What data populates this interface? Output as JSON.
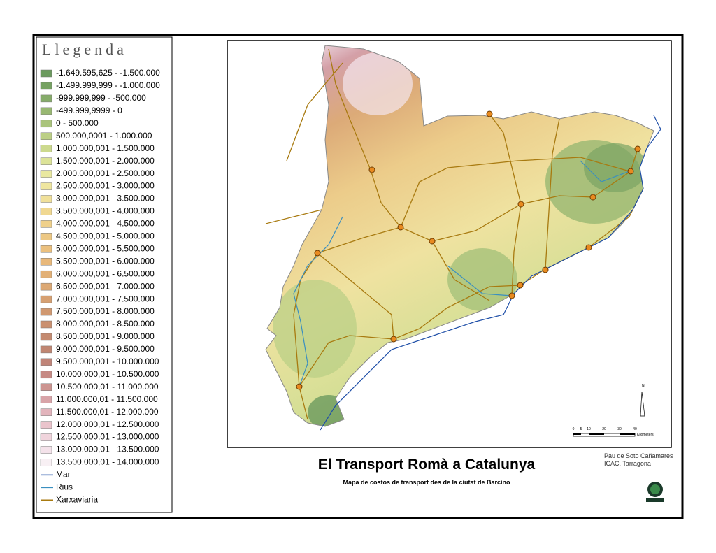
{
  "legend": {
    "title": "Llegenda",
    "items": [
      {
        "label": "-1.649.595,625 - -1.500.000",
        "color": "#6b9a5e"
      },
      {
        "label": "-1.499.999,999 - -1.000.000",
        "color": "#76a262"
      },
      {
        "label": "-999.999,999 - -500.000",
        "color": "#86ac6a"
      },
      {
        "label": "-499.999,9999 - 0",
        "color": "#98b872"
      },
      {
        "label": "0 - 500.000",
        "color": "#aac47c"
      },
      {
        "label": "500.000,0001 - 1.000.000",
        "color": "#bccf86"
      },
      {
        "label": "1.000.000,001 - 1.500.000",
        "color": "#ccd98e"
      },
      {
        "label": "1.500.000,001 - 2.000.000",
        "color": "#dce398"
      },
      {
        "label": "2.000.000,001 - 2.500.000",
        "color": "#e9e8a0"
      },
      {
        "label": "2.500.000,001 - 3.000.000",
        "color": "#efe6a0"
      },
      {
        "label": "3.000.000,001 - 3.500.000",
        "color": "#f0e09a"
      },
      {
        "label": "3.500.000,001 - 4.000.000",
        "color": "#f0d892"
      },
      {
        "label": "4.000.000,001 - 4.500.000",
        "color": "#efd08a"
      },
      {
        "label": "4.500.000,001 - 5.000.000",
        "color": "#edc884"
      },
      {
        "label": "5.000.000,001 - 5.500.000",
        "color": "#ebc07e"
      },
      {
        "label": "5.500.000,001 - 6.000.000",
        "color": "#e8b87a"
      },
      {
        "label": "6.000.000,001 - 6.500.000",
        "color": "#e2b076"
      },
      {
        "label": "6.500.000,001 - 7.000.000",
        "color": "#dca874"
      },
      {
        "label": "7.000.000,001 - 7.500.000",
        "color": "#d6a072"
      },
      {
        "label": "7.500.000,001 - 8.000.000",
        "color": "#d09870"
      },
      {
        "label": "8.000.000,001 - 8.500.000",
        "color": "#ca9070"
      },
      {
        "label": "8.500.000,001 - 9.000.000",
        "color": "#c48a70"
      },
      {
        "label": "9.000.000,001 - 9.500.000",
        "color": "#c08672"
      },
      {
        "label": "9.500.000,001 - 10.000.000",
        "color": "#c08478"
      },
      {
        "label": "10.000.000,01 - 10.500.000",
        "color": "#c68a84"
      },
      {
        "label": "10.500.000,01 - 11.000.000",
        "color": "#cc9490"
      },
      {
        "label": "11.000.000,01 - 11.500.000",
        "color": "#d8a4a8"
      },
      {
        "label": "11.500.000,01 - 12.000.000",
        "color": "#e2b4bc"
      },
      {
        "label": "12.000.000,01 - 12.500.000",
        "color": "#eac4cc"
      },
      {
        "label": "12.500.000,01 - 13.000.000",
        "color": "#f0d4dc"
      },
      {
        "label": "13.000.000,01 - 13.500.000",
        "color": "#f4e2ea"
      },
      {
        "label": "13.500.000,01 - 14.000.000",
        "color": "#f8f0f4"
      }
    ],
    "lines": [
      {
        "label": "Mar",
        "color": "#1f4fa8"
      },
      {
        "label": "Rius",
        "color": "#3a8fc0"
      },
      {
        "label": "Xarxaviaria",
        "color": "#a87a10"
      }
    ]
  },
  "title": "El Transport Romà a Catalunya",
  "subtitle": "Mapa de costos de transport des de la ciutat de Barcino",
  "credits": [
    "Pau de Soto Cañamares",
    "ICAC, Tarragona"
  ],
  "north": "N",
  "scale": {
    "labels": [
      "0",
      "5",
      "10",
      "20",
      "30",
      "40"
    ],
    "unit": "Kilometers"
  }
}
